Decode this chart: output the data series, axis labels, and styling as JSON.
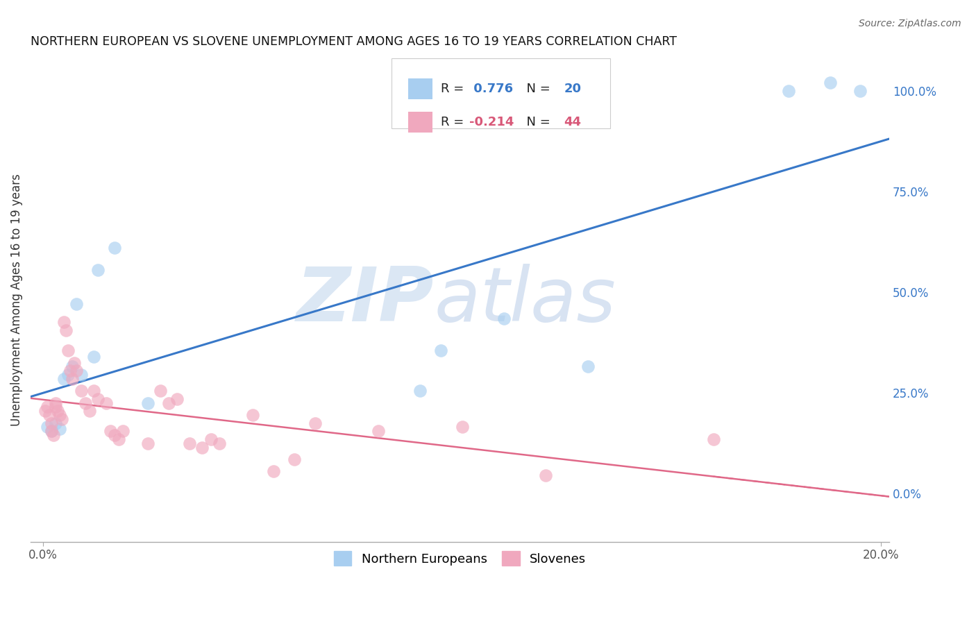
{
  "title": "NORTHERN EUROPEAN VS SLOVENE UNEMPLOYMENT AMONG AGES 16 TO 19 YEARS CORRELATION CHART",
  "source": "Source: ZipAtlas.com",
  "ylabel": "Unemployment Among Ages 16 to 19 years",
  "legend_label1": "Northern Europeans",
  "legend_label2": "Slovenes",
  "R1": 0.776,
  "N1": 20,
  "R2": -0.214,
  "N2": 44,
  "color_blue": "#a8cef0",
  "color_pink": "#f0a8be",
  "color_blue_line": "#3878c8",
  "color_pink_line": "#e06888",
  "color_blue_text": "#3878c8",
  "color_pink_text": "#d85878",
  "watermark_zip": "ZIP",
  "watermark_atlas": "atlas",
  "blue_x": [
    0.001,
    0.002,
    0.003,
    0.004,
    0.005,
    0.006,
    0.007,
    0.008,
    0.009,
    0.012,
    0.013,
    0.017,
    0.025,
    0.09,
    0.095,
    0.11,
    0.13,
    0.178,
    0.188,
    0.195
  ],
  "blue_y": [
    0.165,
    0.155,
    0.175,
    0.16,
    0.285,
    0.295,
    0.315,
    0.47,
    0.295,
    0.34,
    0.555,
    0.61,
    0.225,
    0.255,
    0.355,
    0.435,
    0.315,
    1.0,
    1.02,
    1.0
  ],
  "pink_x": [
    0.0005,
    0.001,
    0.0015,
    0.002,
    0.002,
    0.0025,
    0.003,
    0.003,
    0.0035,
    0.004,
    0.0045,
    0.005,
    0.0055,
    0.006,
    0.0065,
    0.007,
    0.0075,
    0.008,
    0.009,
    0.01,
    0.011,
    0.012,
    0.013,
    0.015,
    0.016,
    0.017,
    0.018,
    0.019,
    0.025,
    0.028,
    0.03,
    0.032,
    0.035,
    0.038,
    0.04,
    0.042,
    0.05,
    0.055,
    0.06,
    0.065,
    0.08,
    0.1,
    0.12,
    0.16
  ],
  "pink_y": [
    0.205,
    0.215,
    0.195,
    0.175,
    0.155,
    0.145,
    0.225,
    0.215,
    0.205,
    0.195,
    0.185,
    0.425,
    0.405,
    0.355,
    0.305,
    0.285,
    0.325,
    0.305,
    0.255,
    0.225,
    0.205,
    0.255,
    0.235,
    0.225,
    0.155,
    0.145,
    0.135,
    0.155,
    0.125,
    0.255,
    0.225,
    0.235,
    0.125,
    0.115,
    0.135,
    0.125,
    0.195,
    0.055,
    0.085,
    0.175,
    0.155,
    0.165,
    0.045,
    0.135
  ],
  "xlim": [
    -0.003,
    0.202
  ],
  "ylim": [
    -0.12,
    1.08
  ],
  "right_ytick_vals": [
    0.0,
    0.25,
    0.5,
    0.75,
    1.0
  ],
  "right_ytick_labels": [
    "0.0%",
    "25.0%",
    "50.0%",
    "75.0%",
    "100.0%"
  ],
  "xtick_vals": [
    0.0,
    0.2
  ],
  "xtick_labels": [
    "0.0%",
    "20.0%"
  ],
  "marker_size": 180,
  "marker_alpha": 0.65
}
